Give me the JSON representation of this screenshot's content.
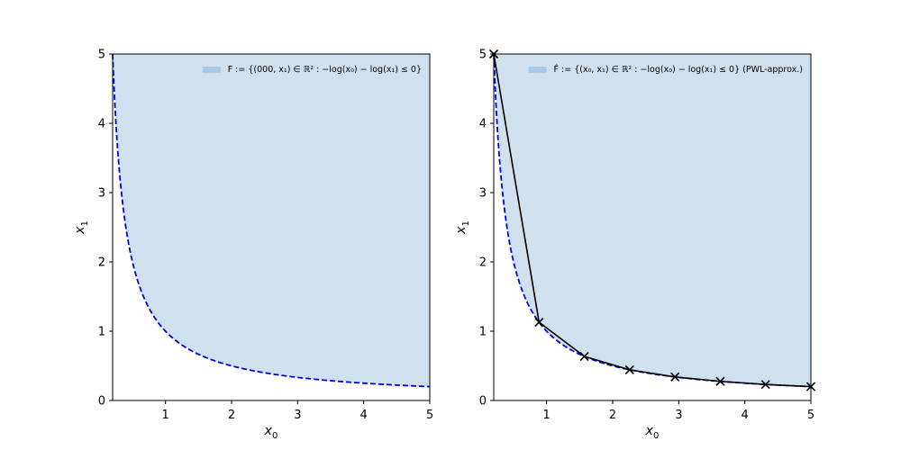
{
  "chart_data": [
    {
      "type": "area",
      "xlabel": "x",
      "xlabel_sub": "0",
      "ylabel": "x",
      "ylabel_sub": "1",
      "xlim": [
        0.2,
        5
      ],
      "ylim": [
        0,
        5
      ],
      "xticks": [
        "1",
        "2",
        "3",
        "4",
        "5"
      ],
      "yticks": [
        "0",
        "1",
        "2",
        "3",
        "4",
        "5"
      ],
      "legend": {
        "placement": "top-right",
        "label": "F := {(000, x₁) ∈ ℝ² : −log(x₀) − log(x₁) ≤ 0}"
      },
      "series": [
        {
          "kind": "boundary",
          "style": "dashed",
          "color": "#0000ee",
          "function": "x1 = 1/x0"
        }
      ],
      "fill_color": "#cfe1ee"
    },
    {
      "type": "area",
      "xlabel": "x",
      "xlabel_sub": "0",
      "ylabel": "x",
      "ylabel_sub": "1",
      "xlim": [
        0.2,
        5
      ],
      "ylim": [
        0,
        5
      ],
      "xticks": [
        "1",
        "2",
        "3",
        "4",
        "5"
      ],
      "yticks": [
        "0",
        "1",
        "2",
        "3",
        "4",
        "5"
      ],
      "legend": {
        "placement": "top-right",
        "label": "F̂ := {(x₀, x₁) ∈ ℝ² : −log(x₀) − log(x₁) ≤ 0} (PWL-approx.)"
      },
      "series": [
        {
          "kind": "boundary",
          "style": "dashed",
          "color": "#0000ee",
          "function": "x1 = 1/x0"
        },
        {
          "kind": "pwl",
          "style": "solid",
          "color": "#000000",
          "marker": "x",
          "x": [
            0.2,
            0.886,
            1.571,
            2.257,
            2.943,
            3.629,
            4.314,
            5.0
          ],
          "y": [
            5.0,
            1.129,
            0.636,
            0.443,
            0.34,
            0.276,
            0.232,
            0.2
          ]
        }
      ],
      "fill_color": "#cfe1ee"
    }
  ]
}
